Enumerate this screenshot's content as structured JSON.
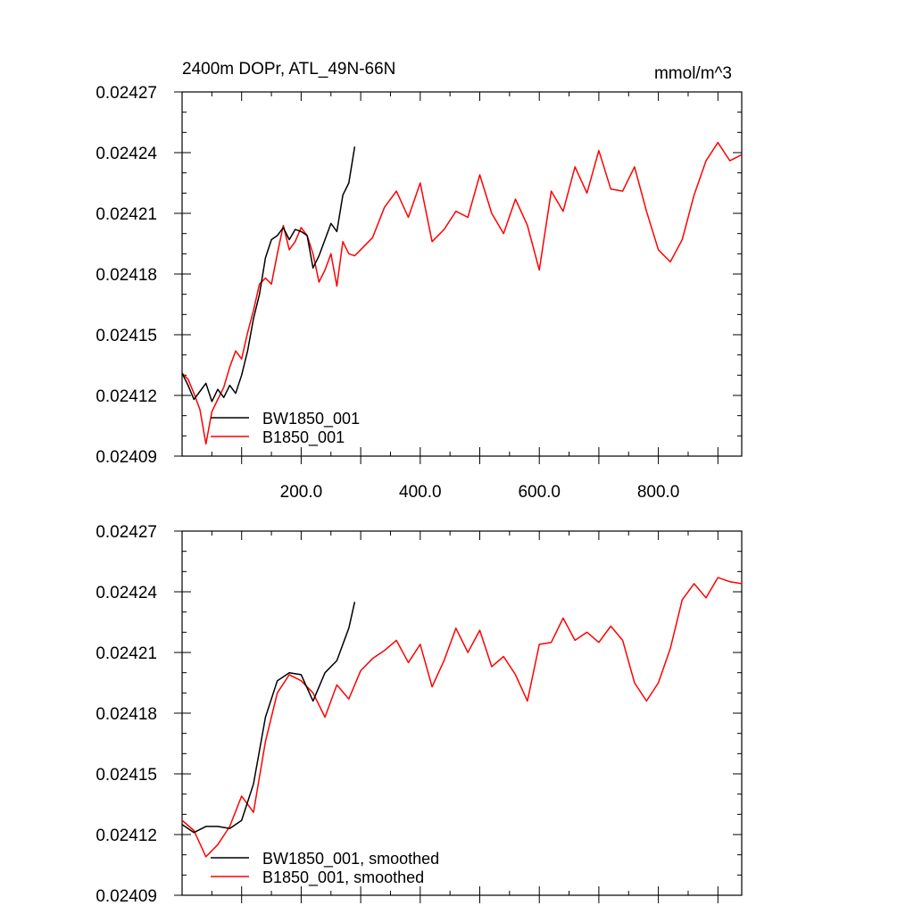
{
  "chart_data": [
    {
      "type": "line",
      "title": "2400m DOPr, ATL_49N-66N",
      "units": "mmol/m^3",
      "xlabel": "",
      "ylabel": "",
      "xlim": [
        0,
        940
      ],
      "ylim": [
        0.02409,
        0.02427
      ],
      "x_ticks": [
        "200.0",
        "400.0",
        "600.0",
        "800.0"
      ],
      "y_ticks": [
        "0.02409",
        "0.02412",
        "0.02415",
        "0.02418",
        "0.02421",
        "0.02424",
        "0.02427"
      ],
      "grid": false,
      "legend": "bottom-left",
      "series": [
        {
          "name": "BW1850_001",
          "color": "#000000",
          "x": [
            0,
            10,
            20,
            30,
            40,
            50,
            60,
            70,
            80,
            90,
            100,
            110,
            120,
            130,
            140,
            150,
            160,
            170,
            180,
            190,
            200,
            210,
            220,
            230,
            240,
            250,
            260,
            270,
            280,
            290
          ],
          "y": [
            0.024131,
            0.024125,
            0.024118,
            0.024122,
            0.024126,
            0.024117,
            0.024123,
            0.024119,
            0.024125,
            0.024121,
            0.02413,
            0.024142,
            0.024158,
            0.02417,
            0.024188,
            0.024197,
            0.024199,
            0.024203,
            0.024197,
            0.024202,
            0.024201,
            0.024199,
            0.024183,
            0.024189,
            0.024197,
            0.024205,
            0.024201,
            0.024219,
            0.024225,
            0.024243
          ]
        },
        {
          "name": "B1850_001",
          "color": "#ff0000",
          "x": [
            0,
            10,
            20,
            30,
            40,
            50,
            60,
            70,
            80,
            90,
            100,
            110,
            120,
            130,
            140,
            150,
            160,
            170,
            180,
            190,
            200,
            210,
            220,
            230,
            240,
            250,
            260,
            270,
            280,
            290,
            300,
            320,
            340,
            360,
            380,
            400,
            420,
            440,
            460,
            480,
            500,
            520,
            540,
            560,
            580,
            600,
            620,
            640,
            660,
            680,
            700,
            720,
            740,
            760,
            780,
            800,
            820,
            840,
            860,
            880,
            900,
            920,
            940
          ],
          "y": [
            0.024131,
            0.024128,
            0.024121,
            0.024113,
            0.024096,
            0.024112,
            0.024118,
            0.024124,
            0.024134,
            0.024142,
            0.024138,
            0.024151,
            0.024162,
            0.024175,
            0.024178,
            0.024175,
            0.02419,
            0.024204,
            0.024192,
            0.024196,
            0.024203,
            0.024199,
            0.02419,
            0.024176,
            0.024182,
            0.02419,
            0.024174,
            0.024196,
            0.02419,
            0.024189,
            0.024192,
            0.024198,
            0.024213,
            0.024221,
            0.024208,
            0.024225,
            0.024196,
            0.024202,
            0.024211,
            0.024208,
            0.024229,
            0.02421,
            0.0242,
            0.024217,
            0.024204,
            0.024182,
            0.024221,
            0.024211,
            0.024233,
            0.02422,
            0.024241,
            0.024222,
            0.024221,
            0.024233,
            0.024211,
            0.024192,
            0.024186,
            0.024197,
            0.024219,
            0.024236,
            0.024245,
            0.024236,
            0.024239
          ]
        }
      ]
    },
    {
      "type": "line",
      "title": "",
      "units": "",
      "xlabel": "",
      "ylabel": "",
      "xlim": [
        0,
        940
      ],
      "ylim": [
        0.02409,
        0.02427
      ],
      "x_ticks": [],
      "y_ticks": [
        "0.02409",
        "0.02412",
        "0.02415",
        "0.02418",
        "0.02421",
        "0.02424",
        "0.02427"
      ],
      "grid": false,
      "legend": "bottom-left",
      "series": [
        {
          "name": "BW1850_001, smoothed",
          "color": "#000000",
          "x": [
            0,
            20,
            40,
            60,
            80,
            100,
            120,
            140,
            160,
            180,
            200,
            220,
            240,
            260,
            280,
            290
          ],
          "y": [
            0.024125,
            0.024121,
            0.024124,
            0.024124,
            0.024123,
            0.024127,
            0.024145,
            0.024178,
            0.024196,
            0.0242,
            0.024199,
            0.024186,
            0.0242,
            0.024206,
            0.024222,
            0.024235
          ]
        },
        {
          "name": "B1850_001, smoothed",
          "color": "#ff0000",
          "x": [
            0,
            20,
            40,
            60,
            80,
            100,
            120,
            140,
            160,
            180,
            200,
            220,
            240,
            260,
            280,
            300,
            320,
            340,
            360,
            380,
            400,
            420,
            440,
            460,
            480,
            500,
            520,
            540,
            560,
            580,
            600,
            620,
            640,
            660,
            680,
            700,
            720,
            740,
            760,
            780,
            800,
            820,
            840,
            860,
            880,
            900,
            920,
            940
          ],
          "y": [
            0.024127,
            0.024122,
            0.024109,
            0.024115,
            0.024124,
            0.024139,
            0.024131,
            0.024166,
            0.02419,
            0.024199,
            0.024196,
            0.02419,
            0.024178,
            0.024194,
            0.024187,
            0.024201,
            0.024207,
            0.024211,
            0.024216,
            0.024205,
            0.024214,
            0.024193,
            0.024206,
            0.024222,
            0.02421,
            0.024221,
            0.024203,
            0.024208,
            0.024199,
            0.024186,
            0.024214,
            0.024215,
            0.024227,
            0.024216,
            0.02422,
            0.024215,
            0.024223,
            0.024216,
            0.024195,
            0.024186,
            0.024195,
            0.024212,
            0.024236,
            0.024244,
            0.024237,
            0.024247,
            0.024245,
            0.024244
          ]
        }
      ]
    }
  ]
}
